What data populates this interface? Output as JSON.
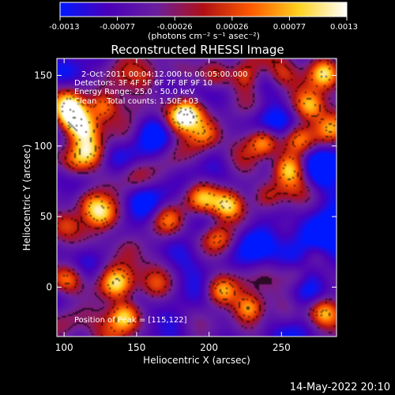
{
  "chart_data": {
    "type": "heatmap",
    "title": "Reconstructed RHESSI Image",
    "xlabel": "Heliocentric X (arcsec)",
    "ylabel": "Heliocentric Y (arcsec)",
    "xlim": [
      95,
      288
    ],
    "ylim": [
      -35,
      162
    ],
    "xticks": [
      100,
      150,
      200,
      250
    ],
    "yticks": [
      0,
      50,
      100,
      150
    ],
    "colorbar": {
      "ticks": [
        "-0.0013",
        "-0.00077",
        "-0.00026",
        "0.00026",
        "0.00077",
        "0.0013"
      ],
      "range": [
        -0.0013,
        0.0013
      ],
      "units_label": "(photons cm⁻² s⁻¹ asec⁻²)",
      "colormap": [
        "#0018ff",
        "#4a00b8",
        "#6a1fa0",
        "#b01015",
        "#ff5a00",
        "#ffd21f",
        "#ffffff"
      ]
    },
    "annotations": [
      "2-Oct-2011 00:04:12.000 to 00:05:00.000",
      "Detectors: 3F 4F 5F 6F 7F 8F 9F 10",
      "Energy Range: 25.0 - 50.0 keV",
      "Clean    Total counts: 1.50E+03"
    ],
    "peak_label": "Position of Peak = [115,122]",
    "bright_sources": [
      {
        "x": 105,
        "y": 122,
        "v": 1.0
      },
      {
        "x": 113,
        "y": 112,
        "v": 0.75
      },
      {
        "x": 117,
        "y": 96,
        "v": 0.7
      },
      {
        "x": 127,
        "y": 128,
        "v": 0.8
      },
      {
        "x": 102,
        "y": 132,
        "v": 0.6
      },
      {
        "x": 125,
        "y": 52,
        "v": 0.8
      },
      {
        "x": 118,
        "y": 60,
        "v": 0.55
      },
      {
        "x": 106,
        "y": 88,
        "v": 0.5
      },
      {
        "x": 101,
        "y": 45,
        "v": 0.45
      },
      {
        "x": 142,
        "y": -20,
        "v": 0.95
      },
      {
        "x": 136,
        "y": 2,
        "v": 0.7
      },
      {
        "x": 102,
        "y": 5,
        "v": 0.65
      },
      {
        "x": 186,
        "y": 123,
        "v": 0.85
      },
      {
        "x": 178,
        "y": 118,
        "v": 0.6
      },
      {
        "x": 198,
        "y": 108,
        "v": 0.55
      },
      {
        "x": 213,
        "y": 58,
        "v": 0.85
      },
      {
        "x": 195,
        "y": 62,
        "v": 0.6
      },
      {
        "x": 206,
        "y": 35,
        "v": 0.55
      },
      {
        "x": 172,
        "y": 48,
        "v": 0.55
      },
      {
        "x": 238,
        "y": 103,
        "v": 0.9
      },
      {
        "x": 255,
        "y": 84,
        "v": 0.8
      },
      {
        "x": 240,
        "y": 64,
        "v": 0.55
      },
      {
        "x": 280,
        "y": 152,
        "v": 0.95
      },
      {
        "x": 270,
        "y": 128,
        "v": 0.75
      },
      {
        "x": 262,
        "y": 105,
        "v": 0.6
      },
      {
        "x": 284,
        "y": 112,
        "v": 0.6
      },
      {
        "x": 228,
        "y": -15,
        "v": 0.95
      },
      {
        "x": 208,
        "y": -3,
        "v": 0.7
      },
      {
        "x": 163,
        "y": 1,
        "v": 0.45
      },
      {
        "x": 279,
        "y": -18,
        "v": 0.85
      },
      {
        "x": 260,
        "y": 8,
        "v": 0.5
      },
      {
        "x": 273,
        "y": 23,
        "v": 0.4
      },
      {
        "x": 150,
        "y": 78,
        "v": 0.35
      },
      {
        "x": 225,
        "y": 150,
        "v": 0.6
      },
      {
        "x": 250,
        "y": 150,
        "v": 0.5
      },
      {
        "x": 158,
        "y": 148,
        "v": 0.45
      },
      {
        "x": 205,
        "y": 150,
        "v": 0.55
      },
      {
        "x": 145,
        "y": 28,
        "v": 0.35
      }
    ],
    "dark_regions": [
      {
        "x": 284,
        "y": 40,
        "v": 1.0
      },
      {
        "x": 268,
        "y": 35,
        "v": 0.7
      },
      {
        "x": 255,
        "y": 20,
        "v": 0.6
      },
      {
        "x": 272,
        "y": 5,
        "v": 0.6
      },
      {
        "x": 282,
        "y": 88,
        "v": 0.5
      },
      {
        "x": 160,
        "y": 95,
        "v": 0.5
      },
      {
        "x": 215,
        "y": 135,
        "v": 0.45
      },
      {
        "x": 232,
        "y": 30,
        "v": 0.6
      },
      {
        "x": 152,
        "y": 55,
        "v": 0.45
      }
    ]
  },
  "footer": {
    "timestamp": "14-May-2022 20:10"
  }
}
